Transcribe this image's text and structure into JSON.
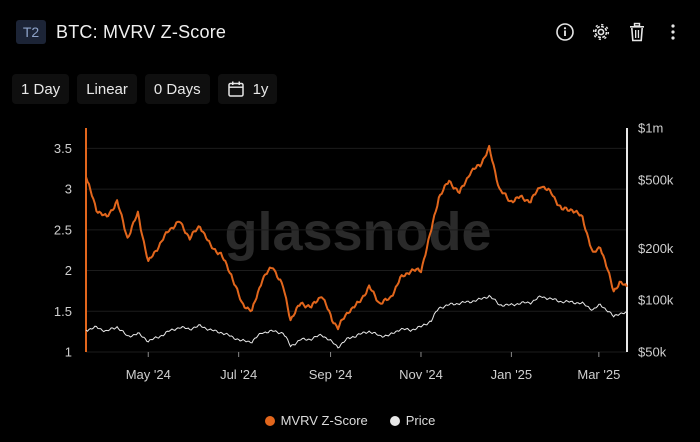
{
  "header": {
    "badge": "T2",
    "title": "BTC: MVRV Z-Score",
    "icons": [
      "info-icon",
      "gear-icon",
      "trash-icon",
      "more-vertical-icon"
    ]
  },
  "toolbar": {
    "resolution": "1 Day",
    "scale": "Linear",
    "sma": "0 Days",
    "range": "1y"
  },
  "watermark": "glassnode",
  "colors": {
    "mvrv": "#e2661c",
    "price": "#e8e8e8",
    "grid": "#1c1c1c",
    "axis_left": "#e2661c",
    "axis_right": "#e8e8e8"
  },
  "chart_data": {
    "type": "line",
    "title": "BTC: MVRV Z-Score",
    "x_ticks": [
      "May '24",
      "Jul '24",
      "Sep '24",
      "Nov '24",
      "Jan '25",
      "Mar '25"
    ],
    "x_range": [
      "2024-03-20",
      "2025-03-20"
    ],
    "y_left": {
      "ticks": [
        "1",
        "1.5",
        "2",
        "2.5",
        "3",
        "3.5"
      ],
      "ylim": [
        1,
        3.75
      ]
    },
    "y_right": {
      "ticks": [
        "$50k",
        "$100k",
        "$200k",
        "$500k",
        "$1m"
      ],
      "scale": "log",
      "ylim": [
        50000,
        1000000
      ]
    },
    "grid": true,
    "legend_position": "bottom",
    "series": [
      {
        "name": "MVRV Z-Score",
        "axis": "left",
        "points": [
          [
            "2024-03-20",
            3.15
          ],
          [
            "2024-03-27",
            2.75
          ],
          [
            "2024-04-03",
            2.65
          ],
          [
            "2024-04-10",
            2.85
          ],
          [
            "2024-04-17",
            2.4
          ],
          [
            "2024-04-24",
            2.7
          ],
          [
            "2024-05-01",
            2.1
          ],
          [
            "2024-05-08",
            2.3
          ],
          [
            "2024-05-15",
            2.5
          ],
          [
            "2024-05-22",
            2.6
          ],
          [
            "2024-05-29",
            2.4
          ],
          [
            "2024-06-05",
            2.55
          ],
          [
            "2024-06-12",
            2.3
          ],
          [
            "2024-06-19",
            2.2
          ],
          [
            "2024-06-26",
            1.95
          ],
          [
            "2024-07-03",
            1.6
          ],
          [
            "2024-07-10",
            1.5
          ],
          [
            "2024-07-17",
            1.9
          ],
          [
            "2024-07-24",
            2.05
          ],
          [
            "2024-07-31",
            1.8
          ],
          [
            "2024-08-05",
            1.4
          ],
          [
            "2024-08-12",
            1.6
          ],
          [
            "2024-08-19",
            1.55
          ],
          [
            "2024-08-26",
            1.7
          ],
          [
            "2024-09-02",
            1.4
          ],
          [
            "2024-09-06",
            1.3
          ],
          [
            "2024-09-13",
            1.5
          ],
          [
            "2024-09-20",
            1.6
          ],
          [
            "2024-09-27",
            1.8
          ],
          [
            "2024-10-04",
            1.6
          ],
          [
            "2024-10-11",
            1.65
          ],
          [
            "2024-10-18",
            1.9
          ],
          [
            "2024-10-25",
            2.0
          ],
          [
            "2024-11-01",
            2.0
          ],
          [
            "2024-11-08",
            2.5
          ],
          [
            "2024-11-13",
            2.9
          ],
          [
            "2024-11-20",
            3.1
          ],
          [
            "2024-11-27",
            2.95
          ],
          [
            "2024-12-04",
            3.2
          ],
          [
            "2024-12-11",
            3.3
          ],
          [
            "2024-12-17",
            3.5
          ],
          [
            "2024-12-24",
            3.0
          ],
          [
            "2024-12-31",
            2.85
          ],
          [
            "2025-01-07",
            2.9
          ],
          [
            "2025-01-14",
            2.85
          ],
          [
            "2025-01-21",
            3.05
          ],
          [
            "2025-01-28",
            2.95
          ],
          [
            "2025-02-04",
            2.75
          ],
          [
            "2025-02-11",
            2.75
          ],
          [
            "2025-02-18",
            2.65
          ],
          [
            "2025-02-25",
            2.2
          ],
          [
            "2025-03-02",
            2.3
          ],
          [
            "2025-03-07",
            2.0
          ],
          [
            "2025-03-11",
            1.75
          ],
          [
            "2025-03-15",
            1.85
          ],
          [
            "2025-03-20",
            1.8
          ]
        ]
      },
      {
        "name": "Price",
        "axis": "right",
        "points": [
          [
            "2024-03-20",
            67000
          ],
          [
            "2024-03-27",
            69500
          ],
          [
            "2024-04-03",
            66000
          ],
          [
            "2024-04-10",
            70000
          ],
          [
            "2024-04-17",
            61500
          ],
          [
            "2024-04-24",
            64000
          ],
          [
            "2024-05-01",
            58000
          ],
          [
            "2024-05-08",
            61000
          ],
          [
            "2024-05-15",
            66000
          ],
          [
            "2024-05-22",
            69500
          ],
          [
            "2024-05-29",
            68000
          ],
          [
            "2024-06-05",
            71000
          ],
          [
            "2024-06-12",
            67000
          ],
          [
            "2024-06-19",
            65000
          ],
          [
            "2024-06-26",
            61500
          ],
          [
            "2024-07-03",
            58000
          ],
          [
            "2024-07-10",
            57500
          ],
          [
            "2024-07-17",
            65000
          ],
          [
            "2024-07-24",
            66000
          ],
          [
            "2024-07-31",
            64500
          ],
          [
            "2024-08-05",
            54000
          ],
          [
            "2024-08-12",
            59000
          ],
          [
            "2024-08-19",
            59500
          ],
          [
            "2024-08-26",
            63000
          ],
          [
            "2024-09-02",
            57000
          ],
          [
            "2024-09-06",
            53500
          ],
          [
            "2024-09-13",
            60000
          ],
          [
            "2024-09-20",
            63000
          ],
          [
            "2024-09-27",
            66000
          ],
          [
            "2024-10-04",
            62000
          ],
          [
            "2024-10-11",
            62500
          ],
          [
            "2024-10-18",
            68000
          ],
          [
            "2024-10-25",
            67000
          ],
          [
            "2024-11-01",
            70000
          ],
          [
            "2024-11-08",
            76000
          ],
          [
            "2024-11-13",
            90000
          ],
          [
            "2024-11-20",
            94000
          ],
          [
            "2024-11-27",
            96000
          ],
          [
            "2024-12-04",
            98000
          ],
          [
            "2024-12-11",
            101000
          ],
          [
            "2024-12-17",
            106000
          ],
          [
            "2024-12-24",
            94000
          ],
          [
            "2024-12-31",
            93500
          ],
          [
            "2025-01-07",
            96000
          ],
          [
            "2025-01-14",
            97000
          ],
          [
            "2025-01-21",
            105000
          ],
          [
            "2025-01-28",
            101500
          ],
          [
            "2025-02-04",
            98000
          ],
          [
            "2025-02-11",
            97500
          ],
          [
            "2025-02-18",
            95500
          ],
          [
            "2025-02-25",
            88000
          ],
          [
            "2025-03-02",
            94000
          ],
          [
            "2025-03-07",
            87000
          ],
          [
            "2025-03-11",
            80000
          ],
          [
            "2025-03-15",
            84000
          ],
          [
            "2025-03-20",
            84500
          ]
        ]
      }
    ]
  }
}
